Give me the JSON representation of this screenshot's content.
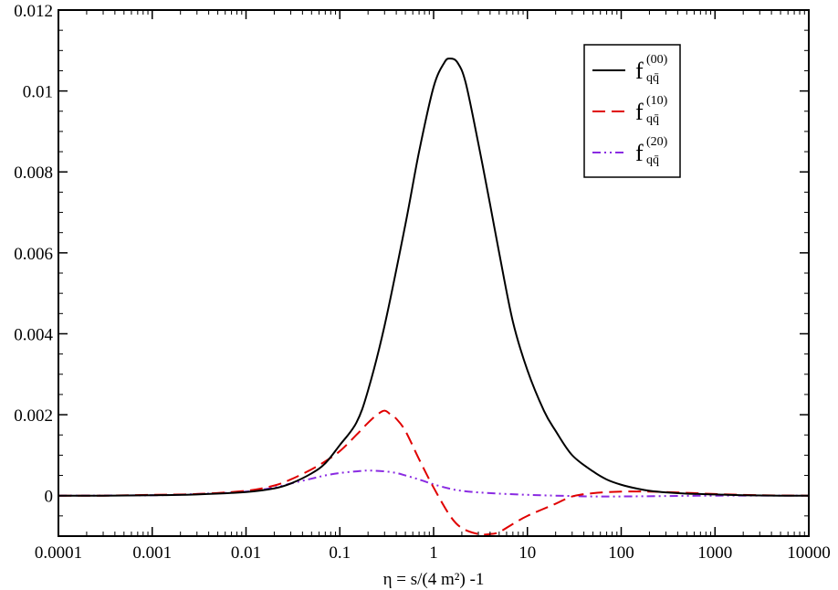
{
  "chart_data": {
    "type": "line",
    "title": "",
    "xlabel": "η = s/(4 m²) -1",
    "ylabel": "",
    "xscale": "log",
    "xlim": [
      0.0001,
      10000
    ],
    "ylim": [
      -0.001,
      0.012
    ],
    "grid": false,
    "legend_position": "top-right",
    "x_tick_labels": [
      "0.0001",
      "0.001",
      "0.01",
      "0.1",
      "1",
      "10",
      "100",
      "1000",
      "10000"
    ],
    "x_tick_values": [
      0.0001,
      0.001,
      0.01,
      0.1,
      1,
      10,
      100,
      1000,
      10000
    ],
    "y_tick_labels": [
      "0",
      "0.002",
      "0.004",
      "0.006",
      "0.008",
      "0.01",
      "0.012"
    ],
    "y_tick_values": [
      0,
      0.002,
      0.004,
      0.006,
      0.008,
      0.01,
      0.012
    ],
    "series": [
      {
        "name": "f_qq̄^(00)",
        "legend_main": "f",
        "legend_sub": "qq̄",
        "legend_sup": "(00)",
        "color": "#000000",
        "dash": "solid",
        "x": [
          0.0001,
          0.0003,
          0.001,
          0.003,
          0.01,
          0.02,
          0.03,
          0.05,
          0.07,
          0.1,
          0.15,
          0.2,
          0.3,
          0.5,
          0.7,
          1,
          1.3,
          1.5,
          1.8,
          2.2,
          3,
          4,
          5,
          7,
          10,
          15,
          20,
          30,
          50,
          70,
          100,
          150,
          200,
          300,
          500,
          1000,
          2000,
          5000,
          10000
        ],
        "y": [
          0,
          0,
          1e-05,
          3e-05,
          9e-05,
          0.00018,
          0.0003,
          0.00055,
          0.0008,
          0.00125,
          0.0018,
          0.0026,
          0.0042,
          0.0067,
          0.0085,
          0.0101,
          0.0107,
          0.0108,
          0.0107,
          0.0102,
          0.0087,
          0.0072,
          0.006,
          0.0043,
          0.0031,
          0.0021,
          0.0016,
          0.001,
          0.0006,
          0.0004,
          0.00027,
          0.00017,
          0.00012,
          8e-05,
          5e-05,
          3e-05,
          1e-05,
          0,
          0
        ]
      },
      {
        "name": "f_qq̄^(10)",
        "legend_main": "f",
        "legend_sub": "qq̄",
        "legend_sup": "(10)",
        "color": "#e00000",
        "dash": "dashed",
        "x": [
          0.0001,
          0.0003,
          0.001,
          0.003,
          0.01,
          0.02,
          0.03,
          0.05,
          0.07,
          0.1,
          0.15,
          0.2,
          0.25,
          0.3,
          0.35,
          0.4,
          0.5,
          0.7,
          1,
          1.5,
          2,
          3,
          4,
          5,
          7,
          10,
          20,
          30,
          50,
          100,
          200,
          500,
          1000,
          3000,
          10000
        ],
        "y": [
          0,
          0,
          2e-05,
          4e-05,
          0.00012,
          0.00025,
          0.0004,
          0.00065,
          0.00085,
          0.0011,
          0.0015,
          0.0018,
          0.002,
          0.0021,
          0.002,
          0.0019,
          0.0016,
          0.0009,
          0.0002,
          -0.0005,
          -0.0008,
          -0.00095,
          -0.00095,
          -0.0009,
          -0.0007,
          -0.0005,
          -0.0002,
          -2e-05,
          6e-05,
          0.0001,
          0.0001,
          7e-05,
          4e-05,
          1e-05,
          0
        ]
      },
      {
        "name": "f_qq̄^(20)",
        "legend_main": "f",
        "legend_sub": "qq̄",
        "legend_sup": "(20)",
        "color": "#8a2be2",
        "dash": "dashdotdot",
        "x": [
          0.0001,
          0.001,
          0.003,
          0.01,
          0.02,
          0.03,
          0.05,
          0.07,
          0.1,
          0.15,
          0.2,
          0.3,
          0.4,
          0.5,
          0.7,
          1,
          1.5,
          2,
          3,
          5,
          10,
          20,
          50,
          100,
          300,
          1000,
          10000
        ],
        "y": [
          0,
          1e-05,
          4e-05,
          0.0001,
          0.0002,
          0.0003,
          0.00042,
          0.0005,
          0.00056,
          0.0006,
          0.00062,
          0.0006,
          0.00056,
          0.0005,
          0.0004,
          0.00028,
          0.00017,
          0.00012,
          8e-05,
          5e-05,
          2e-05,
          0,
          -2e-05,
          -2e-05,
          -1e-05,
          0,
          0
        ]
      }
    ]
  }
}
